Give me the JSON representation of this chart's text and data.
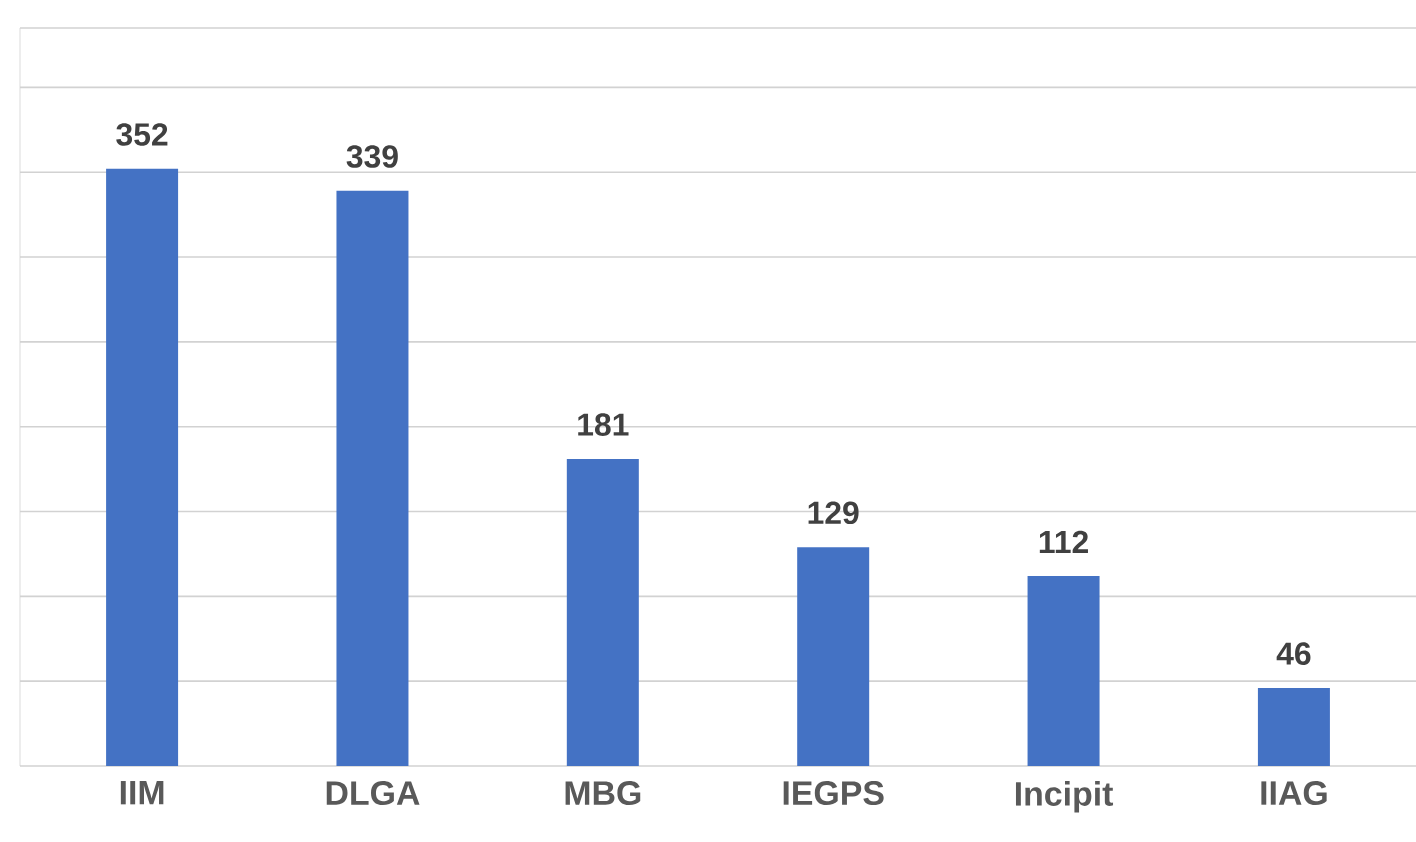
{
  "chart_data": {
    "type": "bar",
    "categories": [
      "IIM",
      "DLGA",
      "MBG",
      "IEGPS",
      "Incipit",
      "IIAG"
    ],
    "values": [
      352,
      339,
      181,
      129,
      112,
      46
    ],
    "color": "#4472c4",
    "data_labels": true,
    "grid": "y",
    "tick_labels": "x",
    "ylim": [
      0,
      435
    ],
    "yticks": [
      {
        "value": 0,
        "label": null
      },
      {
        "value": 50,
        "label": null
      },
      {
        "value": 100,
        "label": null
      },
      {
        "value": 150,
        "label": null
      },
      {
        "value": 200,
        "label": null
      },
      {
        "value": 250,
        "label": null
      },
      {
        "value": 300,
        "label": null
      },
      {
        "value": 350,
        "label": null
      },
      {
        "value": 400,
        "label": null
      }
    ]
  }
}
